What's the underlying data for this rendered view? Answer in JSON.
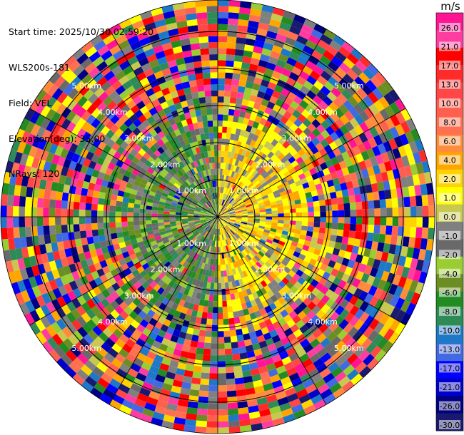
{
  "info": {
    "start_time": "Start time: 2025/10/30 02:59:20",
    "station": "WLS200s-181",
    "field": "Field: VEL",
    "elevation": "Elevation(deg): 35.00",
    "nrays": "NRays: 120"
  },
  "colorbar": {
    "unit": "m/s",
    "labels": [
      "26.0",
      "21.0",
      "17.0",
      "13.0",
      "10.0",
      "8.0",
      "6.0",
      "4.0",
      "2.0",
      "1.0",
      "0.0",
      "-1.0",
      "-2.0",
      "-4.0",
      "-6.0",
      "-8.0",
      "-10.0",
      "-13.0",
      "-17.0",
      "-21.0",
      "-26.0",
      "-30.0"
    ],
    "colors": [
      "#ff1493",
      "#ff3ca0",
      "#ff0000",
      "#ff2a2a",
      "#ff4747",
      "#ff5f4f",
      "#ff7050",
      "#ff8c3c",
      "#ffa500",
      "#ffd200",
      "#ffff00",
      "#c8c850",
      "#808080",
      "#696969",
      "#9acd32",
      "#6b8e23",
      "#228b22",
      "#2e8b57",
      "#1e78c8",
      "#4169e1",
      "#0000ff",
      "#0000cd",
      "#000080",
      "#191970"
    ]
  },
  "range_rings": [
    {
      "label": "1.00km"
    },
    {
      "label": "2.00km"
    },
    {
      "label": "3.00km"
    },
    {
      "label": "4.00km"
    },
    {
      "label": "5.00km"
    }
  ],
  "chart_data": {
    "type": "heatmap",
    "projection": "polar",
    "field": "VEL",
    "unit": "m/s",
    "elevation_deg": 35.0,
    "n_rays": 120,
    "range_rings_km": [
      1,
      2,
      3,
      4,
      5
    ],
    "color_levels": [
      -30.0,
      -26.0,
      -21.0,
      -17.0,
      -13.0,
      -10.0,
      -8.0,
      -6.0,
      -4.0,
      -2.0,
      -1.0,
      0.0,
      1.0,
      2.0,
      4.0,
      6.0,
      8.0,
      10.0,
      13.0,
      17.0,
      21.0,
      26.0
    ],
    "vmin": -30.0,
    "vmax": 30.0,
    "pattern": {
      "inner_west": "negative (green/olive, -2 to -8 m/s)",
      "inner_east": "positive (yellow/orange, 2 to 6 m/s)",
      "outer": "noisy, full colour range"
    }
  }
}
